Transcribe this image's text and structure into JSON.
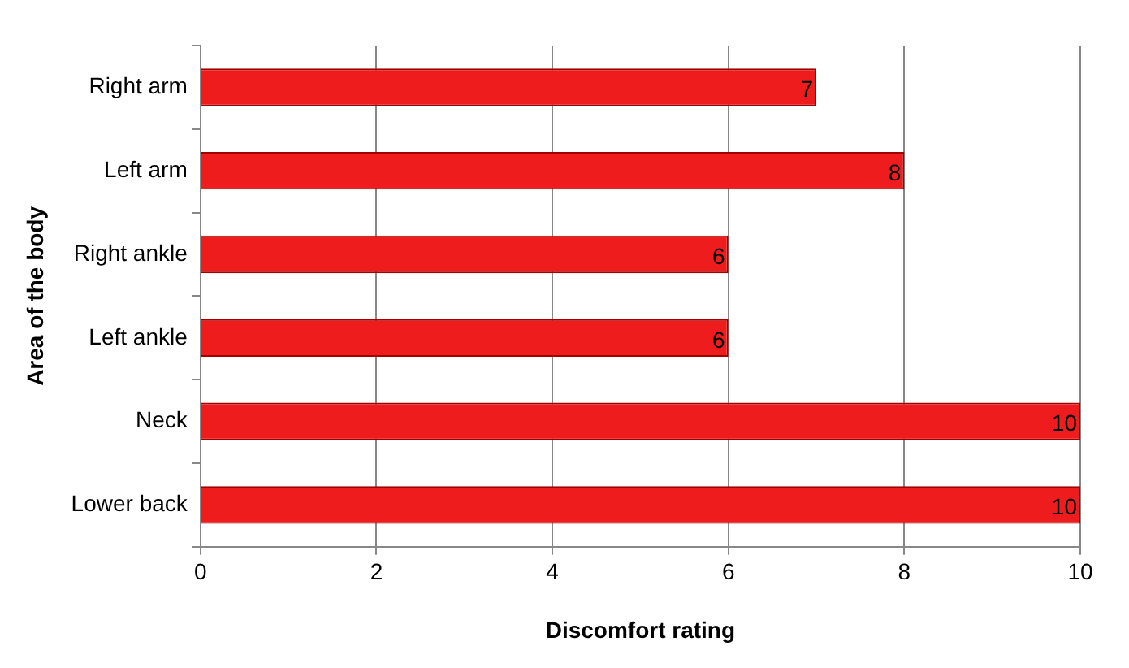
{
  "chart_data": {
    "type": "bar",
    "orientation": "horizontal",
    "xlabel": "Discomfort rating",
    "ylabel": "Area of the body",
    "categories": [
      "Right arm",
      "Left arm",
      "Right ankle",
      "Left ankle",
      "Neck",
      "Lower back"
    ],
    "values": [
      7,
      8,
      6,
      6,
      10,
      10
    ],
    "color": "#ee1c1c",
    "xlim": [
      0,
      10
    ],
    "xticks": [
      0,
      2,
      4,
      6,
      8,
      10
    ],
    "grid": "x",
    "data_labels": true,
    "legend": false
  }
}
